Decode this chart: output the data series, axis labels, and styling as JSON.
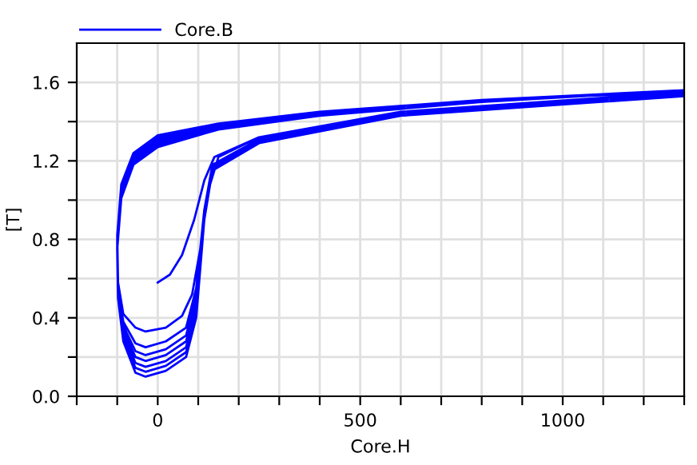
{
  "chart_data": {
    "type": "line",
    "xlabel": "Core.H",
    "ylabel": "[T]",
    "xlim": [
      -200,
      1300
    ],
    "ylim": [
      0,
      1.8
    ],
    "xticks": [
      {
        "value": -200,
        "label": null
      },
      {
        "value": -100,
        "label": null
      },
      0,
      {
        "value": 100,
        "label": null
      },
      {
        "value": 200,
        "label": null
      },
      {
        "value": 300,
        "label": null
      },
      {
        "value": 400,
        "label": null
      },
      500,
      {
        "value": 600,
        "label": null
      },
      {
        "value": 700,
        "label": null
      },
      {
        "value": 800,
        "label": null
      },
      {
        "value": 900,
        "label": null
      },
      1000,
      {
        "value": 1100,
        "label": null
      },
      {
        "value": 1200,
        "label": null
      },
      {
        "value": 1300,
        "label": null
      }
    ],
    "yticks": [
      {
        "value": 0,
        "label": "0.0"
      },
      {
        "value": 0.2,
        "label": null
      },
      0.4,
      {
        "value": 0.6,
        "label": null
      },
      0.8,
      {
        "value": 1.0,
        "label": null
      },
      1.2,
      {
        "value": 1.4,
        "label": null
      },
      1.6
    ],
    "grid": true,
    "legend": "top left",
    "line_style": "solid",
    "marker": "none",
    "series": [
      {
        "name": "Core.B",
        "color": "#0000ff",
        "x": [
          0,
          30,
          60,
          90,
          115,
          140,
          250,
          600,
          1300,
          800,
          400,
          150,
          0,
          -60,
          -90,
          -100,
          -98,
          -85,
          -55,
          -30,
          20,
          60,
          85,
          105,
          125,
          150,
          250,
          600,
          1300,
          1300,
          800,
          400,
          150,
          0,
          -60,
          -90,
          -100,
          -98,
          -85,
          -55,
          -30,
          20,
          70,
          95,
          115,
          135,
          250,
          600,
          1300,
          1300,
          800,
          400,
          150,
          0,
          -60,
          -90,
          -100,
          -98,
          -85,
          -55,
          -30,
          20,
          70,
          95,
          115,
          135,
          250,
          600,
          1300,
          1300,
          800,
          400,
          150,
          0,
          -60,
          -90,
          -100,
          -98,
          -85,
          -55,
          -30,
          20,
          70,
          95,
          115,
          135,
          250,
          600,
          1300,
          1300,
          800,
          400,
          150,
          0,
          -60,
          -90,
          -100,
          -98,
          -85,
          -55,
          -30,
          20,
          70,
          95,
          115,
          135,
          250,
          600,
          1300,
          1300,
          800,
          400,
          150,
          0,
          -60,
          -90,
          -100,
          -98,
          -85,
          -55,
          -30,
          20,
          70,
          95,
          115,
          135,
          250,
          600,
          1300,
          1300,
          800,
          400,
          150,
          0,
          -60,
          -90,
          -100,
          -98,
          -85,
          -55,
          -30,
          20,
          70,
          95,
          115,
          135,
          250,
          600,
          1300
        ],
        "values": [
          0.58,
          0.62,
          0.72,
          0.9,
          1.1,
          1.22,
          1.32,
          1.45,
          1.55,
          1.51,
          1.45,
          1.39,
          1.33,
          1.24,
          1.08,
          0.82,
          0.58,
          0.42,
          0.35,
          0.33,
          0.35,
          0.41,
          0.52,
          0.75,
          1.05,
          1.22,
          1.32,
          1.45,
          1.54,
          1.56,
          1.51,
          1.45,
          1.38,
          1.32,
          1.23,
          1.06,
          0.8,
          0.55,
          0.38,
          0.27,
          0.25,
          0.28,
          0.35,
          0.55,
          0.95,
          1.18,
          1.31,
          1.44,
          1.54,
          1.56,
          1.51,
          1.45,
          1.38,
          1.31,
          1.22,
          1.05,
          0.79,
          0.54,
          0.36,
          0.23,
          0.21,
          0.24,
          0.31,
          0.51,
          0.94,
          1.17,
          1.31,
          1.44,
          1.54,
          1.56,
          1.51,
          1.44,
          1.37,
          1.3,
          1.21,
          1.04,
          0.78,
          0.53,
          0.34,
          0.2,
          0.18,
          0.21,
          0.28,
          0.48,
          0.93,
          1.17,
          1.3,
          1.44,
          1.54,
          1.56,
          1.51,
          1.44,
          1.37,
          1.29,
          1.2,
          1.03,
          0.77,
          0.52,
          0.32,
          0.17,
          0.15,
          0.18,
          0.25,
          0.45,
          0.92,
          1.16,
          1.3,
          1.44,
          1.54,
          1.56,
          1.5,
          1.44,
          1.36,
          1.28,
          1.19,
          1.02,
          0.76,
          0.51,
          0.3,
          0.145,
          0.125,
          0.155,
          0.225,
          0.42,
          0.91,
          1.16,
          1.3,
          1.44,
          1.54,
          1.56,
          1.5,
          1.43,
          1.36,
          1.27,
          1.18,
          1.01,
          0.75,
          0.5,
          0.28,
          0.12,
          0.1,
          0.13,
          0.2,
          0.4,
          0.9,
          1.15,
          1.29,
          1.43,
          1.53
        ]
      }
    ]
  }
}
